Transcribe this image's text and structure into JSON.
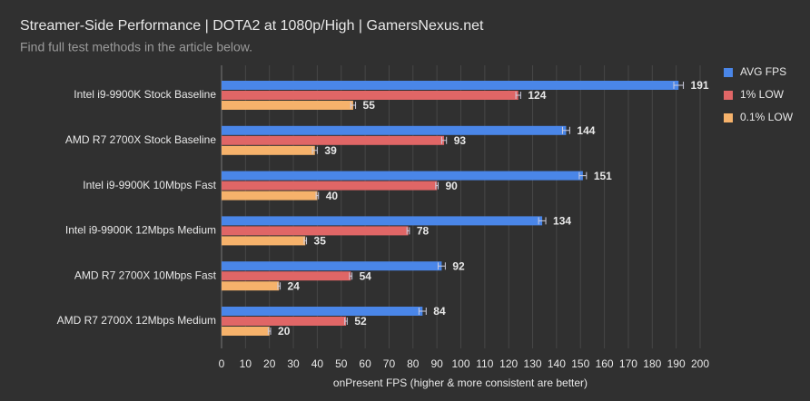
{
  "chart_data": {
    "type": "hbar",
    "title": "Streamer-Side Performance | DOTA2 at 1080p/High | GamersNexus.net",
    "subtitle": "Find full test methods in the article below.",
    "x_label": "onPresent FPS (higher & more consistent are better)",
    "categories": [
      "Intel i9-9900K Stock Baseline",
      "AMD R7 2700X Stock Baseline",
      "Intel i9-9900K 10Mbps Fast",
      "Intel i9-9900K 12Mbps Medium",
      "AMD R7 2700X 10Mbps Fast",
      "AMD R7 2700X 12Mbps Medium"
    ],
    "series": [
      {
        "name": "AVG FPS",
        "color": "#4a86e8",
        "values": [
          191,
          144,
          151,
          134,
          92,
          84
        ],
        "errors": [
          2,
          1.5,
          1.5,
          1.5,
          1.5,
          1.5
        ]
      },
      {
        "name": "1% LOW",
        "color": "#e06666",
        "values": [
          124,
          93,
          90,
          78,
          54,
          52
        ],
        "errors": [
          1,
          1,
          0.5,
          0.5,
          0.5,
          0.5
        ]
      },
      {
        "name": "0.1% LOW",
        "color": "#f6b26b",
        "values": [
          55,
          39,
          40,
          35,
          24,
          20
        ],
        "errors": [
          1,
          1,
          0.5,
          0.5,
          0.5,
          0.5
        ]
      }
    ],
    "xlim": [
      0,
      200
    ],
    "xticks": [
      0,
      10,
      20,
      30,
      40,
      50,
      60,
      70,
      80,
      90,
      100,
      110,
      120,
      130,
      140,
      150,
      160,
      170,
      180,
      190,
      200
    ],
    "grid": true,
    "legend": "top-right"
  }
}
